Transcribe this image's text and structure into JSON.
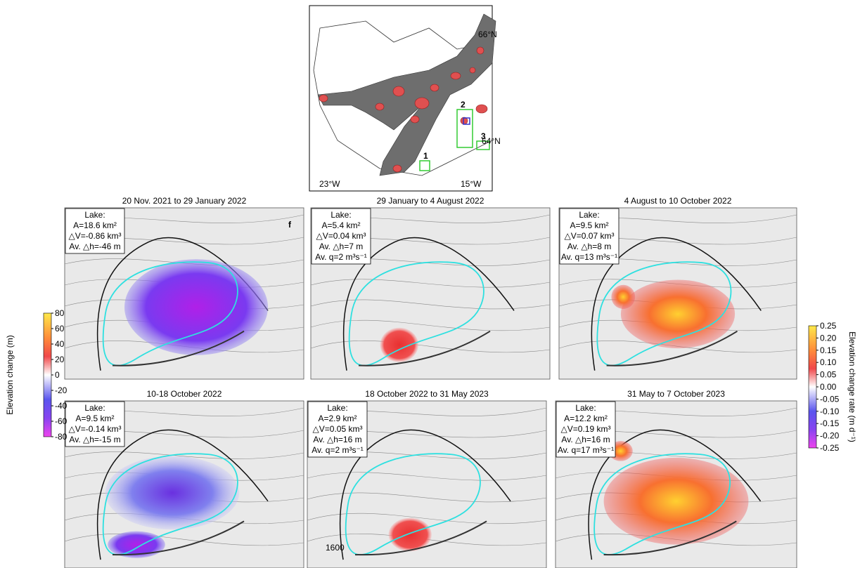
{
  "inset_map": {
    "labels": {
      "lat_north": "66°N",
      "lat_south": "64°N",
      "lon_west": "23°W",
      "lon_east": "15°W"
    },
    "sites": [
      "1",
      "2",
      "3"
    ]
  },
  "panels": [
    {
      "title": "20 Nov. 2021 to 29 January 2022",
      "lake": [
        "Lake:",
        "A=18.6 km²",
        "△V=-0.86 km³",
        "Av. △h=-46 m"
      ],
      "letter": "f"
    },
    {
      "title": "29 January to 4 August 2022",
      "lake": [
        "Lake:",
        "A=5.4 km²",
        "△V=0.04 km³",
        "Av. △h=7 m",
        "Av. q=2 m³s⁻¹"
      ]
    },
    {
      "title": "4 August to 10 October 2022",
      "lake": [
        "Lake:",
        "A=9.5 km²",
        "△V=0.07 km³",
        "Av. △h=8 m",
        "Av. q=13 m³s⁻¹"
      ]
    },
    {
      "title": "10-18 October 2022",
      "lake": [
        "Lake:",
        "A=9.5 km²",
        "△V=-0.14 km³",
        "Av. △h=-15 m"
      ]
    },
    {
      "title": "18 October 2022 to 31 May 2023",
      "lake": [
        "Lake:",
        "A=2.9 km²",
        "△V=0.05 km³",
        "Av. △h=16 m",
        "Av. q=2 m³s⁻¹"
      ],
      "contour_label": "1600"
    },
    {
      "title": "31 May to 7 October 2023",
      "lake": [
        "Lake:",
        "A=12.2 km²",
        "△V=0.19 km³",
        "Av. △h=16 m",
        "Av. q=17 m³s⁻¹"
      ]
    }
  ],
  "colorbars": [
    {
      "label": "Elevation change (m)",
      "lim": [
        -80,
        80
      ],
      "ticks": [
        80,
        60,
        40,
        20,
        0,
        -20,
        -40,
        -60,
        -80
      ]
    },
    {
      "label": "Elevation change rate (m d⁻¹)",
      "lim": [
        -0.25,
        0.25
      ],
      "ticks": [
        {
          "value": 0.25,
          "label": "0.25"
        },
        {
          "value": 0.2,
          "label": "0.20"
        },
        {
          "value": 0.15,
          "label": "0.15"
        },
        {
          "value": 0.1,
          "label": "0.10"
        },
        {
          "value": 0.05,
          "label": "0.05"
        },
        {
          "value": 0,
          "label": "0.00"
        },
        {
          "value": -0.05,
          "label": "-0.05"
        },
        {
          "value": -0.1,
          "label": "-0.10"
        },
        {
          "value": -0.15,
          "label": "-0.15"
        },
        {
          "value": -0.2,
          "label": "-0.20"
        },
        {
          "value": -0.25,
          "label": "-0.25"
        }
      ]
    }
  ]
}
